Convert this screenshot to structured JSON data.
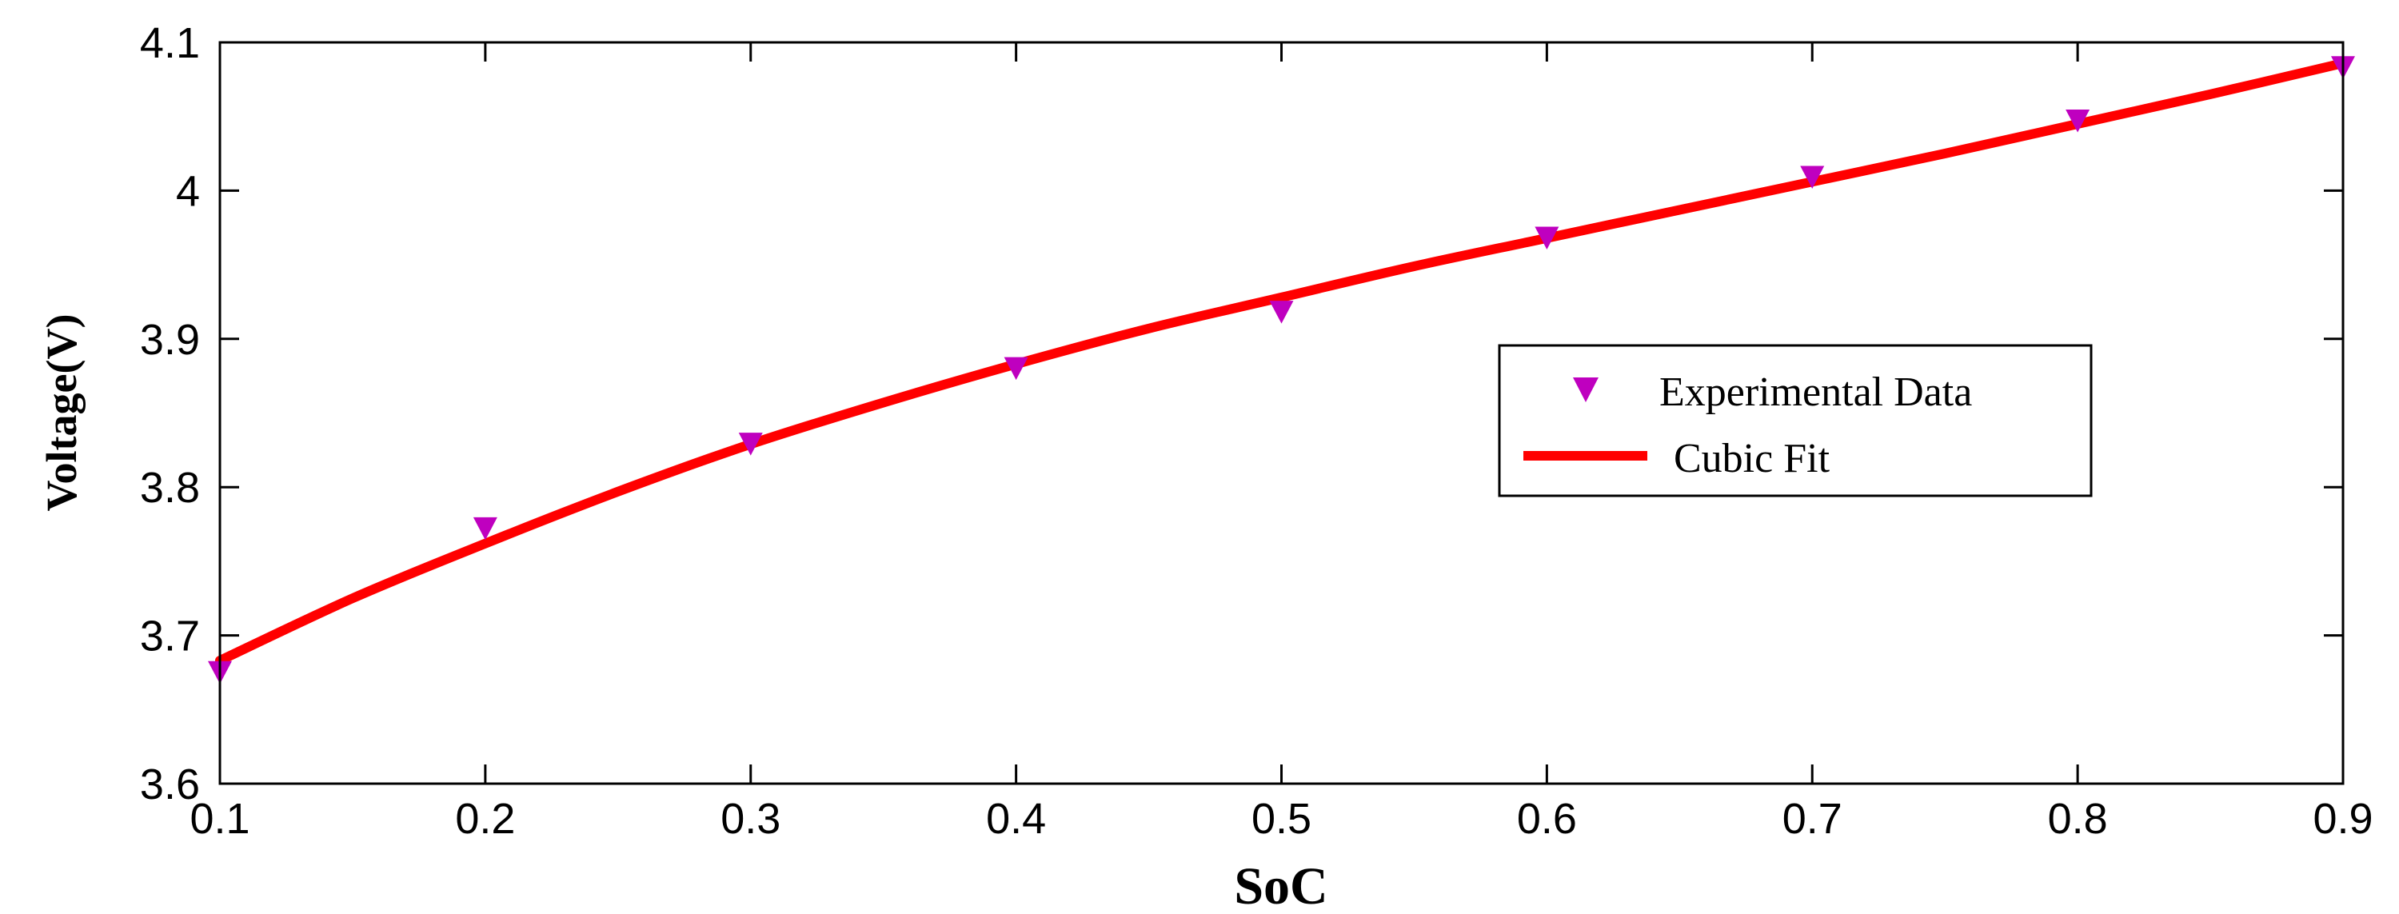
{
  "chart_data": {
    "type": "line",
    "title": "",
    "xlabel": "SoC",
    "ylabel": "Voltage(V)",
    "xlim": [
      0.1,
      0.9
    ],
    "ylim": [
      3.6,
      4.1
    ],
    "xticks": [
      0.1,
      0.2,
      0.3,
      0.4,
      0.5,
      0.6,
      0.7,
      0.8,
      0.9
    ],
    "yticks": [
      3.6,
      3.7,
      3.8,
      3.9,
      4.0,
      4.1
    ],
    "xtick_labels": [
      "0.1",
      "0.2",
      "0.3",
      "0.4",
      "0.5",
      "0.6",
      "0.7",
      "0.8",
      "0.9"
    ],
    "ytick_labels": [
      "3.6",
      "3.7",
      "3.8",
      "3.9",
      "4",
      "4.1"
    ],
    "grid": false,
    "legend_position": "center-right",
    "series": [
      {
        "name": "Experimental Data",
        "kind": "scatter",
        "marker": "triangle-down",
        "color": "#BF00BF",
        "x": [
          0.1,
          0.2,
          0.3,
          0.4,
          0.5,
          0.6,
          0.7,
          0.8,
          0.9
        ],
        "y": [
          3.675,
          3.772,
          3.829,
          3.88,
          3.918,
          3.968,
          4.009,
          4.047,
          4.083
        ]
      },
      {
        "name": "Cubic Fit",
        "kind": "line",
        "color": "#FF0000",
        "x": [
          0.1,
          0.15,
          0.2,
          0.25,
          0.3,
          0.35,
          0.4,
          0.45,
          0.5,
          0.55,
          0.6,
          0.65,
          0.7,
          0.75,
          0.8,
          0.85,
          0.9
        ],
        "y": [
          3.683,
          3.725,
          3.762,
          3.797,
          3.829,
          3.857,
          3.883,
          3.907,
          3.928,
          3.949,
          3.968,
          3.987,
          4.006,
          4.025,
          4.045,
          4.065,
          4.086
        ]
      }
    ]
  }
}
